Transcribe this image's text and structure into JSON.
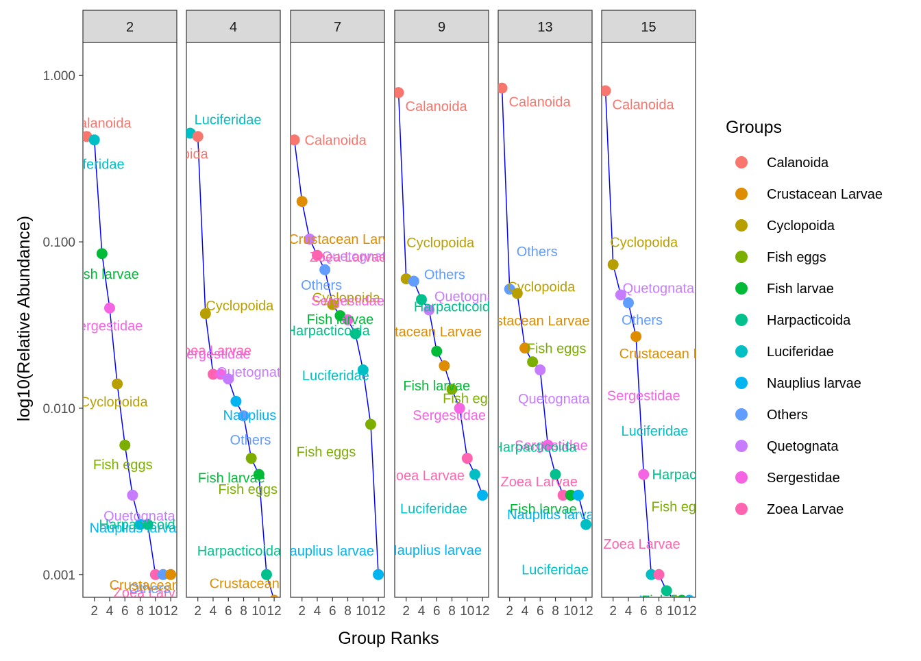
{
  "chart_data": {
    "type": "scatter",
    "subtype": "rank-abundance (faceted, log scale)",
    "xlabel": "Group Ranks",
    "ylabel": "log10(Relative Abundance)",
    "y_scale": "log10",
    "ylim": [
      0.00073,
      1.58
    ],
    "xlim": [
      0.5,
      12.8
    ],
    "x_ticks": [
      "2",
      "4",
      "6",
      "8",
      "10",
      "12"
    ],
    "y_ticks": [
      "0.001",
      "0.010",
      "0.100",
      "1.000"
    ],
    "grid": false,
    "legend_title": "Groups",
    "legend_position": "right",
    "groups": [
      "Calanoida",
      "Crustacean Larvae",
      "Cyclopoida",
      "Fish eggs",
      "Fish larvae",
      "Harpacticoida",
      "Luciferidae",
      "Nauplius larvae",
      "Others",
      "Quetognata",
      "Sergestidae",
      "Zoea Larvae"
    ],
    "colors": {
      "Calanoida": "#F8766D",
      "Crustacean Larvae": "#DE8C00",
      "Cyclopoida": "#B79F00",
      "Fish eggs": "#7CAE00",
      "Fish larvae": "#00BA38",
      "Harpacticoida": "#00C08B",
      "Luciferidae": "#00BFC4",
      "Nauplius larvae": "#00B4F0",
      "Others": "#619CFF",
      "Quetognata": "#C77CFF",
      "Sergestidae": "#F564E3",
      "Zoea Larvae": "#FF64B0"
    },
    "line_color": "#0000FF",
    "panels": [
      {
        "facet": "2",
        "points": [
          {
            "group": "Calanoida",
            "rank": 1,
            "value": 0.43,
            "label": "Calanoida"
          },
          {
            "group": "Luciferidae",
            "rank": 2,
            "value": 0.41,
            "label": "Luciferidae"
          },
          {
            "group": "Fish larvae",
            "rank": 3,
            "value": 0.085,
            "label": "Fish larvae"
          },
          {
            "group": "Sergestidae",
            "rank": 4,
            "value": 0.04,
            "label": "Sergestidae"
          },
          {
            "group": "Cyclopoida",
            "rank": 5,
            "value": 0.014,
            "label": "Cyclopoida"
          },
          {
            "group": "Fish eggs",
            "rank": 6,
            "value": 0.006,
            "label": "Fish eggs"
          },
          {
            "group": "Quetognata",
            "rank": 7,
            "value": 0.003,
            "label": "Quetognata"
          },
          {
            "group": "Nauplius larvae",
            "rank": 8,
            "value": 0.002,
            "label": "Nauplius larvae"
          },
          {
            "group": "Harpacticoida",
            "rank": 9,
            "value": 0.002,
            "label": "Harpacticoida"
          },
          {
            "group": "Zoea Larvae",
            "rank": 10,
            "value": 0.001,
            "label": "Zoea Larvae"
          },
          {
            "group": "Others",
            "rank": 11,
            "value": 0.001,
            "label": "Others"
          },
          {
            "group": "Crustacean Larvae",
            "rank": 12,
            "value": 0.001,
            "label": "Crustacean Larvae"
          }
        ]
      },
      {
        "facet": "4",
        "points": [
          {
            "group": "Luciferidae",
            "rank": 1,
            "value": 0.45,
            "label": "Luciferidae"
          },
          {
            "group": "Calanoida",
            "rank": 2,
            "value": 0.43,
            "label": "Calanoida"
          },
          {
            "group": "Cyclopoida",
            "rank": 3,
            "value": 0.037,
            "label": "Cyclopoida"
          },
          {
            "group": "Zoea Larvae",
            "rank": 4,
            "value": 0.016,
            "label": "Zoea Larvae"
          },
          {
            "group": "Sergestidae",
            "rank": 5,
            "value": 0.016,
            "label": "Sergestidae"
          },
          {
            "group": "Quetognata",
            "rank": 6,
            "value": 0.015,
            "label": "Quetognata"
          },
          {
            "group": "Nauplius larvae",
            "rank": 7,
            "value": 0.011,
            "label": "Nauplius larvae"
          },
          {
            "group": "Others",
            "rank": 8,
            "value": 0.009,
            "label": "Others"
          },
          {
            "group": "Fish eggs",
            "rank": 9,
            "value": 0.005,
            "label": "Fish eggs"
          },
          {
            "group": "Fish larvae",
            "rank": 10,
            "value": 0.004,
            "label": "Fish larvae"
          },
          {
            "group": "Harpacticoida",
            "rank": 11,
            "value": 0.001,
            "label": "Harpacticoida"
          },
          {
            "group": "Crustacean Larvae",
            "rank": 12,
            "value": 0.0007,
            "label": "Crustacean Larvae"
          }
        ]
      },
      {
        "facet": "7",
        "points": [
          {
            "group": "Calanoida",
            "rank": 1,
            "value": 0.41,
            "label": "Calanoida"
          },
          {
            "group": "Crustacean Larvae",
            "rank": 2,
            "value": 0.175,
            "label": "Crustacean Larvae"
          },
          {
            "group": "Quetognata",
            "rank": 3,
            "value": 0.104,
            "label": "Quetognata"
          },
          {
            "group": "Zoea Larvae",
            "rank": 4,
            "value": 0.083,
            "label": "Zoea Larvae"
          },
          {
            "group": "Others",
            "rank": 5,
            "value": 0.068,
            "label": "Others"
          },
          {
            "group": "Cyclopoida",
            "rank": 6,
            "value": 0.042,
            "label": "Cyclopoida"
          },
          {
            "group": "Fish larvae",
            "rank": 7,
            "value": 0.036,
            "label": "Fish larvae"
          },
          {
            "group": "Sergestidae",
            "rank": 8,
            "value": 0.034,
            "label": "Sergestidae"
          },
          {
            "group": "Harpacticoida",
            "rank": 9,
            "value": 0.028,
            "label": "Harpacticoida"
          },
          {
            "group": "Luciferidae",
            "rank": 10,
            "value": 0.017,
            "label": "Luciferidae"
          },
          {
            "group": "Fish eggs",
            "rank": 11,
            "value": 0.008,
            "label": "Fish eggs"
          },
          {
            "group": "Nauplius larvae",
            "rank": 12,
            "value": 0.001,
            "label": "Nauplius larvae"
          }
        ]
      },
      {
        "facet": "9",
        "points": [
          {
            "group": "Calanoida",
            "rank": 1,
            "value": 0.79,
            "label": "Calanoida"
          },
          {
            "group": "Cyclopoida",
            "rank": 2,
            "value": 0.06,
            "label": "Cyclopoida"
          },
          {
            "group": "Others",
            "rank": 3,
            "value": 0.058,
            "label": "Others"
          },
          {
            "group": "Harpacticoida",
            "rank": 4,
            "value": 0.045,
            "label": "Harpacticoida"
          },
          {
            "group": "Quetognata",
            "rank": 5,
            "value": 0.039,
            "label": "Quetognata"
          },
          {
            "group": "Fish larvae",
            "rank": 6,
            "value": 0.022,
            "label": "Fish larvae"
          },
          {
            "group": "Crustacean Larvae",
            "rank": 7,
            "value": 0.018,
            "label": "Crustacean Larvae"
          },
          {
            "group": "Fish eggs",
            "rank": 8,
            "value": 0.013,
            "label": "Fish eggs"
          },
          {
            "group": "Sergestidae",
            "rank": 9,
            "value": 0.01,
            "label": "Sergestidae"
          },
          {
            "group": "Zoea Larvae",
            "rank": 10,
            "value": 0.005,
            "label": "Zoea Larvae"
          },
          {
            "group": "Luciferidae",
            "rank": 11,
            "value": 0.004,
            "label": "Luciferidae"
          },
          {
            "group": "Nauplius larvae",
            "rank": 12,
            "value": 0.003,
            "label": "Nauplius larvae"
          }
        ]
      },
      {
        "facet": "13",
        "points": [
          {
            "group": "Calanoida",
            "rank": 1,
            "value": 0.84,
            "label": "Calanoida"
          },
          {
            "group": "Others",
            "rank": 2,
            "value": 0.052,
            "label": "Others"
          },
          {
            "group": "Cyclopoida",
            "rank": 3,
            "value": 0.049,
            "label": "Cyclopoida"
          },
          {
            "group": "Crustacean Larvae",
            "rank": 4,
            "value": 0.023,
            "label": "Crustacean Larvae"
          },
          {
            "group": "Fish eggs",
            "rank": 5,
            "value": 0.019,
            "label": "Fish eggs"
          },
          {
            "group": "Quetognata",
            "rank": 6,
            "value": 0.017,
            "label": "Quetognata"
          },
          {
            "group": "Sergestidae",
            "rank": 7,
            "value": 0.006,
            "label": "Sergestidae"
          },
          {
            "group": "Harpacticoida",
            "rank": 8,
            "value": 0.004,
            "label": "Harpacticoida"
          },
          {
            "group": "Zoea Larvae",
            "rank": 9,
            "value": 0.003,
            "label": "Zoea Larvae"
          },
          {
            "group": "Fish larvae",
            "rank": 10,
            "value": 0.003,
            "label": "Fish larvae"
          },
          {
            "group": "Nauplius larvae",
            "rank": 11,
            "value": 0.003,
            "label": "Nauplius larvae"
          },
          {
            "group": "Luciferidae",
            "rank": 12,
            "value": 0.002,
            "label": "Luciferidae"
          }
        ]
      },
      {
        "facet": "15",
        "points": [
          {
            "group": "Calanoida",
            "rank": 1,
            "value": 0.81,
            "label": "Calanoida"
          },
          {
            "group": "Cyclopoida",
            "rank": 2,
            "value": 0.073,
            "label": "Cyclopoida"
          },
          {
            "group": "Quetognata",
            "rank": 3,
            "value": 0.048,
            "label": "Quetognata"
          },
          {
            "group": "Others",
            "rank": 4,
            "value": 0.043,
            "label": "Others"
          },
          {
            "group": "Crustacean Larvae",
            "rank": 5,
            "value": 0.027,
            "label": "Crustacean Larvae"
          },
          {
            "group": "Sergestidae",
            "rank": 6,
            "value": 0.004,
            "label": "Sergestidae"
          },
          {
            "group": "Luciferidae",
            "rank": 7,
            "value": 0.001,
            "label": "Luciferidae"
          },
          {
            "group": "Zoea Larvae",
            "rank": 8,
            "value": 0.001,
            "label": "Zoea Larvae"
          },
          {
            "group": "Harpacticoida",
            "rank": 9,
            "value": 0.0008,
            "label": "Harpacticoida"
          },
          {
            "group": "Fish eggs",
            "rank": 10,
            "value": 0.0007,
            "label": "Fish eggs"
          },
          {
            "group": "Fish larvae",
            "rank": 11,
            "value": 0.0007,
            "label": "Fish larvae"
          },
          {
            "group": "Nauplius larvae",
            "rank": 12,
            "value": 0.0007,
            "label": "Nauplius larvae"
          }
        ]
      }
    ]
  }
}
